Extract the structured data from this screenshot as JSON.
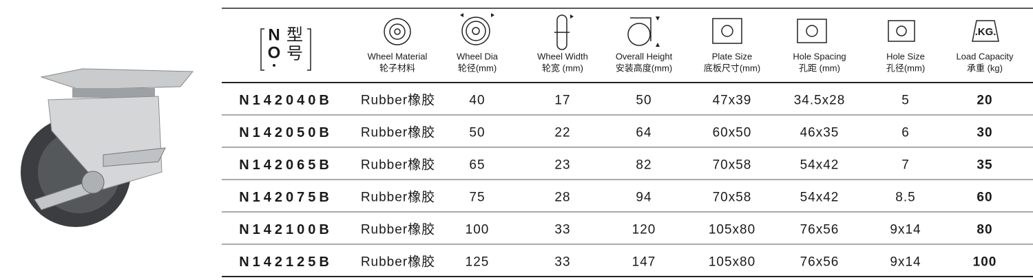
{
  "model_header": {
    "n": "N",
    "o": "O",
    "xing": "型",
    "hao": "号"
  },
  "columns": [
    {
      "en": "Wheel Material",
      "zh": "轮子材料"
    },
    {
      "en": "Wheel Dia",
      "zh": "轮径(mm)"
    },
    {
      "en": "Wheel Width",
      "zh": "轮宽 (mm)"
    },
    {
      "en": "Overall Height",
      "zh": "安装高度(mm)"
    },
    {
      "en": "Plate Size",
      "zh": "底板尺寸(mm)"
    },
    {
      "en": "Hole Spacing",
      "zh": "孔距 (mm)"
    },
    {
      "en": "Hole Size",
      "zh": "孔径(mm)"
    },
    {
      "en": "Load Capacity",
      "zh": "承重 (kg)",
      "icon_text": ".KG."
    }
  ],
  "table": {
    "rows": [
      [
        "N142040B",
        "Rubber橡胶",
        "40",
        "17",
        "50",
        "47x39",
        "34.5x28",
        "5",
        "20"
      ],
      [
        "N142050B",
        "Rubber橡胶",
        "50",
        "22",
        "64",
        "60x50",
        "46x35",
        "6",
        "30"
      ],
      [
        "N142065B",
        "Rubber橡胶",
        "65",
        "23",
        "82",
        "70x58",
        "54x42",
        "7",
        "35"
      ],
      [
        "N142075B",
        "Rubber橡胶",
        "75",
        "28",
        "94",
        "70x58",
        "54x42",
        "8.5",
        "60"
      ],
      [
        "N142100B",
        "Rubber橡胶",
        "100",
        "33",
        "120",
        "105x80",
        "76x56",
        "9x14",
        "80"
      ],
      [
        "N142125B",
        "Rubber橡胶",
        "125",
        "33",
        "147",
        "105x80",
        "76x56",
        "9x14",
        "100"
      ]
    ]
  }
}
